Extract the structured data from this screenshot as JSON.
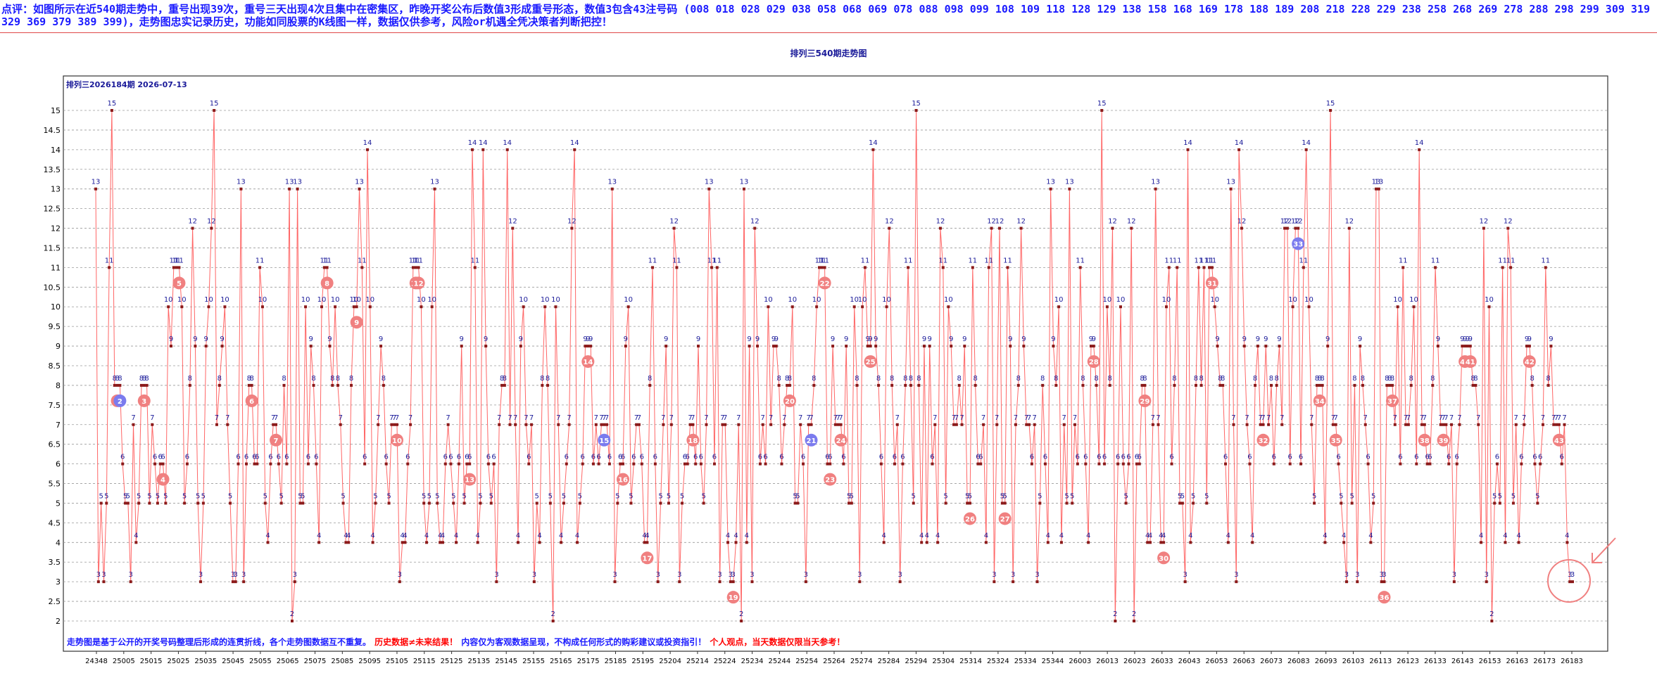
{
  "header": {
    "text": "点评：如图所示在近540期走势中，重号出现39次，重号三天出现4次且集中在密集区，昨晚开奖公布后数值3形成重号形态，数值3包含43注号码 (008  018  028  029  038  058  068  069  078  088  098  099  108  109  118  128  129  138  158  168  169  178  188  189  208  218  228  229  238  258  268  269  278  288  298  299  309  319  329  369  379  389  399)，走势图忠实记录历史，功能如同股票的K线图一样，数据仅供参考，风险or机遇全凭决策者判断把控！"
  },
  "chart_title": "排列三540期走势图",
  "chart_issue": "排列三2026184期 2026-07-13",
  "footer": {
    "blue1": "走势图是基于公开的开奖号码整理后形成的连贯折线，各个走势图数据互不重复。",
    "red1": "历史数据≠未来结果！",
    "blue2": "内容仅为客观数据呈现，不构成任何形式的购彩建议或投资指引！",
    "red2": "个人观点，当天数据仅限当天参考！"
  },
  "colors": {
    "line": "#ff6666",
    "point": "#8b1a1a",
    "marker_red": "#f08080",
    "marker_blue": "#7b7bee",
    "grid": "#999999"
  },
  "chart_data": {
    "type": "line",
    "x_tick_labels": [
      "24348",
      "25005",
      "25015",
      "25025",
      "25035",
      "25045",
      "25055",
      "25065",
      "25075",
      "25085",
      "25095",
      "25105",
      "25115",
      "25125",
      "25135",
      "25145",
      "25155",
      "25165",
      "25175",
      "25185",
      "25195",
      "25204",
      "25214",
      "25224",
      "25234",
      "25244",
      "25254",
      "25264",
      "25274",
      "25284",
      "25294",
      "25304",
      "25314",
      "25324",
      "25334",
      "25344",
      "26003",
      "26013",
      "26023",
      "26033",
      "26043",
      "26053",
      "26063",
      "26073",
      "26083",
      "26093",
      "26103",
      "26113",
      "26123",
      "26133",
      "26143",
      "26153",
      "26163",
      "26173",
      "26183"
    ],
    "y_ticks": [
      "2",
      "2.5",
      "3",
      "3.5",
      "4",
      "4.5",
      "5",
      "5.5",
      "6",
      "6.5",
      "7",
      "7.5",
      "8",
      "8.5",
      "9",
      "9.5",
      "10",
      "10.5",
      "11",
      "11.5",
      "12",
      "12.5",
      "13",
      "13.5",
      "14",
      "14.5",
      "15"
    ],
    "ylim": [
      2,
      15
    ],
    "values": [
      13,
      3,
      5,
      3,
      5,
      11,
      15,
      8,
      8,
      8,
      6,
      5,
      5,
      3,
      7,
      4,
      5,
      8,
      8,
      8,
      5,
      7,
      6,
      5,
      6,
      6,
      5,
      10,
      9,
      11,
      11,
      11,
      10,
      5,
      6,
      8,
      12,
      9,
      5,
      3,
      5,
      9,
      10,
      12,
      15,
      7,
      8,
      9,
      10,
      7,
      5,
      3,
      3,
      6,
      13,
      3,
      6,
      8,
      8,
      6,
      6,
      11,
      10,
      5,
      4,
      6,
      7,
      7,
      6,
      5,
      8,
      6,
      13,
      2,
      3,
      13,
      5,
      5,
      10,
      6,
      9,
      8,
      6,
      4,
      10,
      11,
      11,
      9,
      8,
      10,
      8,
      7,
      5,
      4,
      4,
      8,
      10,
      10,
      13,
      11,
      6,
      14,
      10,
      4,
      5,
      7,
      9,
      8,
      6,
      5,
      7,
      7,
      7,
      3,
      4,
      4,
      6,
      7,
      11,
      11,
      11,
      10,
      5,
      4,
      5,
      10,
      13,
      5,
      4,
      4,
      6,
      7,
      6,
      5,
      4,
      6,
      9,
      5,
      6,
      6,
      14,
      11,
      4,
      5,
      14,
      9,
      6,
      5,
      6,
      3,
      7,
      8,
      8,
      14,
      7,
      12,
      7,
      4,
      9,
      10,
      7,
      6,
      7,
      3,
      5,
      4,
      8,
      10,
      8,
      5,
      2,
      10,
      7,
      4,
      5,
      6,
      7,
      12,
      14,
      4,
      5,
      6,
      9,
      9,
      9,
      6,
      7,
      6,
      7,
      7,
      7,
      6,
      13,
      3,
      5,
      6,
      6,
      9,
      10,
      5,
      6,
      7,
      7,
      6,
      4,
      4,
      8,
      11,
      6,
      3,
      5,
      7,
      9,
      5,
      7,
      12,
      11,
      3,
      5,
      6,
      6,
      7,
      7,
      6,
      9,
      6,
      5,
      7,
      13,
      11,
      6,
      11,
      3,
      7,
      7,
      4,
      3,
      3,
      4,
      7,
      2,
      13,
      4,
      9,
      3,
      12,
      9,
      6,
      7,
      6,
      10,
      7,
      9,
      9,
      8,
      6,
      7,
      8,
      8,
      10,
      5,
      5,
      7,
      6,
      3,
      7,
      7,
      8,
      10,
      11,
      11,
      11,
      6,
      6,
      9,
      7,
      7,
      7,
      6,
      9,
      5,
      5,
      10,
      8,
      3,
      10,
      11,
      9,
      9,
      14,
      9,
      8,
      6,
      4,
      10,
      12,
      8,
      6,
      7,
      3,
      6,
      8,
      11,
      8,
      5,
      15,
      8,
      4,
      9,
      4,
      9,
      6,
      7,
      4,
      12,
      11,
      5,
      10,
      9,
      7,
      7,
      8,
      7,
      9,
      5,
      5,
      11,
      8,
      6,
      6,
      7,
      4,
      11,
      12,
      3,
      7,
      12,
      5,
      5,
      11,
      9,
      3,
      7,
      8,
      12,
      9,
      7,
      7,
      6,
      7,
      3,
      5,
      8,
      6,
      4,
      13,
      9,
      8,
      10,
      4,
      7,
      5,
      13,
      5,
      7,
      6,
      11,
      8,
      6,
      4,
      9,
      9,
      8,
      6,
      15,
      6,
      10,
      8,
      12,
      2,
      6,
      10,
      6,
      5,
      6,
      12,
      2,
      6,
      6,
      8,
      8,
      4,
      4,
      7,
      13,
      7,
      4,
      4,
      10,
      11,
      6,
      8,
      11,
      5,
      5,
      3,
      14,
      4,
      5,
      8,
      11,
      8,
      11,
      5,
      11,
      11,
      10,
      9,
      8,
      8,
      6,
      4,
      13,
      7,
      3,
      14,
      12,
      9,
      7,
      6,
      4,
      8,
      9,
      7,
      7,
      9,
      7,
      8,
      6,
      8,
      9,
      7,
      12,
      12,
      6,
      10,
      12,
      12,
      6,
      11,
      14,
      10,
      7,
      5,
      8,
      8,
      8,
      4,
      9,
      15,
      7,
      7,
      6,
      5,
      4,
      3,
      12,
      5,
      8,
      3,
      9,
      8,
      7,
      6,
      4,
      5,
      13,
      13,
      3,
      3,
      8,
      8,
      8,
      7,
      10,
      6,
      11,
      7,
      7,
      8,
      10,
      6,
      14,
      7,
      7,
      6,
      6,
      8,
      11,
      9,
      7,
      7,
      7,
      6,
      7,
      3,
      6,
      7,
      9,
      9,
      9,
      9,
      8,
      8,
      7,
      4,
      12,
      3,
      10,
      2,
      5,
      6,
      5,
      11,
      4,
      12,
      11,
      5,
      7,
      4,
      6,
      7,
      9,
      9,
      8,
      6,
      5,
      6,
      7,
      11,
      8,
      9,
      7,
      7,
      7,
      6,
      7,
      4,
      3,
      3
    ],
    "point_labels_note": "",
    "marker_numbers": [
      "1",
      "2",
      "3",
      "4",
      "5",
      "6",
      "7",
      "8",
      "9",
      "10",
      "11",
      "12",
      "13",
      "14",
      "15",
      "16",
      "17",
      "18",
      "19",
      "20",
      "21",
      "22",
      "23",
      "24",
      "25",
      "26",
      "27",
      "28",
      "29",
      "30",
      "31",
      "32",
      "33",
      "34",
      "35",
      "36",
      "37",
      "38",
      "39",
      "40",
      "41",
      "42",
      "43"
    ],
    "marker_blue": [
      "2",
      "15",
      "21",
      "33"
    ],
    "grid": true
  }
}
